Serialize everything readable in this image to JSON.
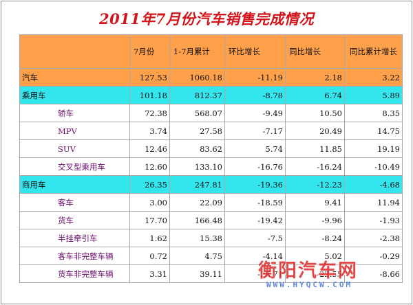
{
  "title": "2011年7月份汽车销售完成情况",
  "headers": {
    "c1": "7月份",
    "c2": "1-7月累计",
    "c3": "环比增长",
    "c4": "同比增长",
    "c5": "同比累计增长"
  },
  "rows": [
    {
      "name": "汽车",
      "level": 0,
      "values": [
        "127.53",
        "1060.18",
        "-11.19",
        "2.18",
        "3.22"
      ]
    },
    {
      "name": "乘用车",
      "level": 1,
      "values": [
        "101.18",
        "812.37",
        "-8.78",
        "6.74",
        "5.89"
      ]
    },
    {
      "name": "轿车",
      "level": 2,
      "values": [
        "72.38",
        "568.07",
        "-9.49",
        "10.50",
        "8.35"
      ]
    },
    {
      "name": "MPV",
      "level": 2,
      "values": [
        "3.74",
        "27.58",
        "-7.17",
        "20.49",
        "14.75"
      ]
    },
    {
      "name": "SUV",
      "level": 2,
      "values": [
        "12.46",
        "83.62",
        "5.74",
        "11.85",
        "19.19"
      ]
    },
    {
      "name": "交叉型乘用车",
      "level": 2,
      "values": [
        "12.60",
        "133.10",
        "-16.76",
        "-16.24",
        "-10.49"
      ]
    },
    {
      "name": "商用车",
      "level": 1,
      "values": [
        "26.35",
        "247.81",
        "-19.36",
        "-12.23",
        "-4.68"
      ]
    },
    {
      "name": "客车",
      "level": 2,
      "values": [
        "3.00",
        "22.09",
        "-18.59",
        "9.41",
        "11.94"
      ]
    },
    {
      "name": "货车",
      "level": 2,
      "values": [
        "17.70",
        "166.48",
        "-19.42",
        "-9.96",
        "-1.93"
      ]
    },
    {
      "name": "半挂牵引车",
      "level": 2,
      "values": [
        "1.62",
        "15.38",
        "-7.5",
        "-8.24",
        "-2.38"
      ]
    },
    {
      "name": "客车非完整车辆",
      "level": 2,
      "values": [
        "0.72",
        "4.75",
        "-4.14",
        "5.02",
        "-0.29"
      ]
    },
    {
      "name": "货车非完整车辆",
      "level": 2,
      "values": [
        "3.31",
        "39.11",
        "-28.71",
        "-22.55",
        "-8.66"
      ]
    }
  ],
  "watermark": {
    "brand": "衡阳汽车网",
    "url": "WWW.HYQCW.COM"
  },
  "colors": {
    "title": "#d4141b",
    "header_bg": "#ffa04a",
    "category_bg": "#33e6ee",
    "subitem_text": "#6a0a6a"
  }
}
